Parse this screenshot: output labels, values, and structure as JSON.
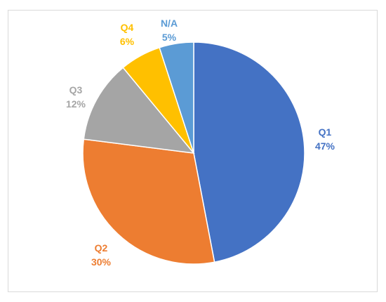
{
  "chart_data": {
    "type": "pie",
    "categories": [
      "Q1",
      "Q2",
      "Q3",
      "Q4",
      "N/A"
    ],
    "values": [
      47,
      30,
      12,
      6,
      5
    ],
    "value_labels": [
      "47%",
      "30%",
      "12%",
      "6%",
      "5%"
    ],
    "colors": [
      "#4472C4",
      "#ED7D31",
      "#A5A5A5",
      "#FFC000",
      "#5B9BD5"
    ],
    "title": "",
    "legend": "none",
    "start_angle": "12 o'clock",
    "direction": "clockwise"
  }
}
